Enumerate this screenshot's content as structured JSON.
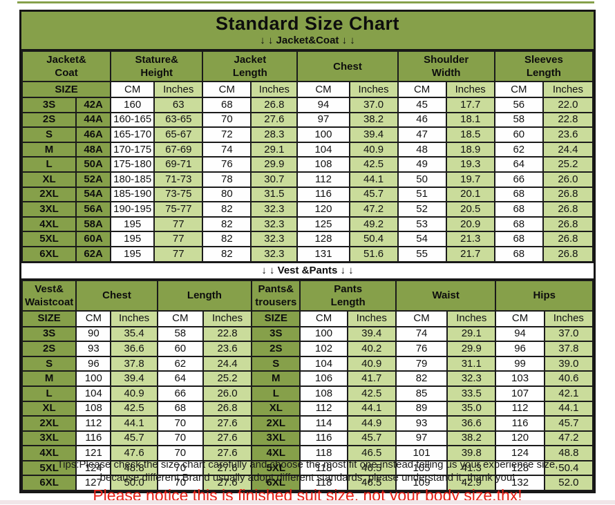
{
  "title": "Standard Size Chart",
  "sections": {
    "jacket_label": "↓ ↓  Jacket&Coat ↓ ↓",
    "vest_label": "↓ ↓  Vest &Pants ↓ ↓"
  },
  "colors": {
    "header_green": "#86a04a",
    "light_green": "#cadc9b",
    "cell_white": "#fefefe",
    "border_black": "#1a1a1a",
    "notice_red": "#e62117"
  },
  "tables": [
    {
      "name": "jacket-coat",
      "groups": [
        {
          "label": "Jacket&\nCoat",
          "span": 2
        },
        {
          "label": "Stature&\nHeight",
          "span": 2
        },
        {
          "label": "Jacket\nLength",
          "span": 2
        },
        {
          "label": "Chest",
          "span": 2
        },
        {
          "label": "Shoulder\nWidth",
          "span": 2
        },
        {
          "label": "Sleeves\nLength",
          "span": 2
        }
      ],
      "subheader": [
        {
          "label": "SIZE",
          "span": 2
        },
        {
          "label": "CM"
        },
        {
          "label": "Inches"
        },
        {
          "label": "CM"
        },
        {
          "label": "Inches"
        },
        {
          "label": "CM"
        },
        {
          "label": "Inches"
        },
        {
          "label": "CM"
        },
        {
          "label": "Inches"
        },
        {
          "label": "CM"
        },
        {
          "label": "Inches"
        }
      ],
      "rows": [
        [
          "3S",
          "42A",
          "160",
          "63",
          "68",
          "26.8",
          "94",
          "37.0",
          "45",
          "17.7",
          "56",
          "22.0"
        ],
        [
          "2S",
          "44A",
          "160-165",
          "63-65",
          "70",
          "27.6",
          "97",
          "38.2",
          "46",
          "18.1",
          "58",
          "22.8"
        ],
        [
          "S",
          "46A",
          "165-170",
          "65-67",
          "72",
          "28.3",
          "100",
          "39.4",
          "47",
          "18.5",
          "60",
          "23.6"
        ],
        [
          "M",
          "48A",
          "170-175",
          "67-69",
          "74",
          "29.1",
          "104",
          "40.9",
          "48",
          "18.9",
          "62",
          "24.4"
        ],
        [
          "L",
          "50A",
          "175-180",
          "69-71",
          "76",
          "29.9",
          "108",
          "42.5",
          "49",
          "19.3",
          "64",
          "25.2"
        ],
        [
          "XL",
          "52A",
          "180-185",
          "71-73",
          "78",
          "30.7",
          "112",
          "44.1",
          "50",
          "19.7",
          "66",
          "26.0"
        ],
        [
          "2XL",
          "54A",
          "185-190",
          "73-75",
          "80",
          "31.5",
          "116",
          "45.7",
          "51",
          "20.1",
          "68",
          "26.8"
        ],
        [
          "3XL",
          "56A",
          "190-195",
          "75-77",
          "82",
          "32.3",
          "120",
          "47.2",
          "52",
          "20.5",
          "68",
          "26.8"
        ],
        [
          "4XL",
          "58A",
          "195",
          "77",
          "82",
          "32.3",
          "125",
          "49.2",
          "53",
          "20.9",
          "68",
          "26.8"
        ],
        [
          "5XL",
          "60A",
          "195",
          "77",
          "82",
          "32.3",
          "128",
          "50.4",
          "54",
          "21.3",
          "68",
          "26.8"
        ],
        [
          "6XL",
          "62A",
          "195",
          "77",
          "82",
          "32.3",
          "131",
          "51.6",
          "55",
          "21.7",
          "68",
          "26.8"
        ]
      ]
    },
    {
      "name": "vest-pants",
      "groups": [
        {
          "label": "Vest&\nWaistcoat",
          "span": 1
        },
        {
          "label": "Chest",
          "span": 2
        },
        {
          "label": "Length",
          "span": 2
        },
        {
          "label": "Pants&\ntrousers",
          "span": 1
        },
        {
          "label": "Pants\nLength",
          "span": 2
        },
        {
          "label": "Waist",
          "span": 2
        },
        {
          "label": "Hips",
          "span": 2
        }
      ],
      "subheader": [
        {
          "label": "SIZE"
        },
        {
          "label": "CM"
        },
        {
          "label": "Inches"
        },
        {
          "label": "CM"
        },
        {
          "label": "Inches"
        },
        {
          "label": "SIZE"
        },
        {
          "label": "CM"
        },
        {
          "label": "Inches"
        },
        {
          "label": "CM"
        },
        {
          "label": "Inches"
        },
        {
          "label": "CM"
        },
        {
          "label": "Inches"
        }
      ],
      "rows": [
        [
          "3S",
          "90",
          "35.4",
          "58",
          "22.8",
          "3S",
          "100",
          "39.4",
          "74",
          "29.1",
          "94",
          "37.0"
        ],
        [
          "2S",
          "93",
          "36.6",
          "60",
          "23.6",
          "2S",
          "102",
          "40.2",
          "76",
          "29.9",
          "96",
          "37.8"
        ],
        [
          "S",
          "96",
          "37.8",
          "62",
          "24.4",
          "S",
          "104",
          "40.9",
          "79",
          "31.1",
          "99",
          "39.0"
        ],
        [
          "M",
          "100",
          "39.4",
          "64",
          "25.2",
          "M",
          "106",
          "41.7",
          "82",
          "32.3",
          "103",
          "40.6"
        ],
        [
          "L",
          "104",
          "40.9",
          "66",
          "26.0",
          "L",
          "108",
          "42.5",
          "85",
          "33.5",
          "107",
          "42.1"
        ],
        [
          "XL",
          "108",
          "42.5",
          "68",
          "26.8",
          "XL",
          "112",
          "44.1",
          "89",
          "35.0",
          "112",
          "44.1"
        ],
        [
          "2XL",
          "112",
          "44.1",
          "70",
          "27.6",
          "2XL",
          "114",
          "44.9",
          "93",
          "36.6",
          "116",
          "45.7"
        ],
        [
          "3XL",
          "116",
          "45.7",
          "70",
          "27.6",
          "3XL",
          "116",
          "45.7",
          "97",
          "38.2",
          "120",
          "47.2"
        ],
        [
          "4XL",
          "121",
          "47.6",
          "70",
          "27.6",
          "4XL",
          "118",
          "46.5",
          "101",
          "39.8",
          "124",
          "48.8"
        ],
        [
          "5XL",
          "124",
          "48.8",
          "70",
          "27.6",
          "5XL",
          "118",
          "46.5",
          "105",
          "41.3",
          "128",
          "50.4"
        ],
        [
          "6XL",
          "127",
          "50.0",
          "70",
          "27.6",
          "6XL",
          "118",
          "46.5",
          "109",
          "42.9",
          "132",
          "52.0"
        ]
      ]
    }
  ],
  "footer": {
    "tips_line1": "Tips:Please check the size chart carefully and choose the most fit one instead telling us your experience size,",
    "tips_line2": "because different Brand usually adopt different standards, please understand it, thank you!",
    "notice": "Please notice this is finished suit size, not your body size,thx!"
  }
}
